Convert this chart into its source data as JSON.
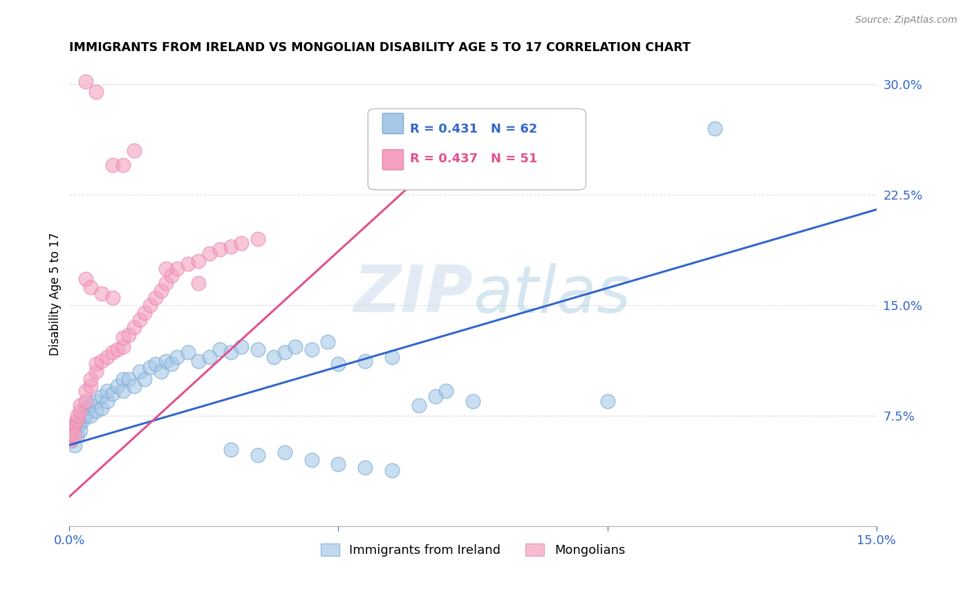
{
  "title": "IMMIGRANTS FROM IRELAND VS MONGOLIAN DISABILITY AGE 5 TO 17 CORRELATION CHART",
  "source": "Source: ZipAtlas.com",
  "ylabel": "Disability Age 5 to 17",
  "legend_labels": [
    "Immigrants from Ireland",
    "Mongolians"
  ],
  "legend_r_blue": "R = 0.431",
  "legend_n_blue": "N = 62",
  "legend_r_pink": "R = 0.437",
  "legend_n_pink": "N = 51",
  "blue_color": "#a8c8e8",
  "pink_color": "#f4a0c0",
  "blue_line_color": "#3366cc",
  "pink_line_color": "#e05090",
  "blue_edge_color": "#7aaad0",
  "pink_edge_color": "#e888b0",
  "xmin": 0.0,
  "xmax": 0.15,
  "ymin": 0.0,
  "ymax": 0.315,
  "xticks": [
    0.0,
    0.05,
    0.1,
    0.15
  ],
  "yticks_right": [
    0.075,
    0.15,
    0.225,
    0.3
  ],
  "grid_color": "#dddddd",
  "blue_x": [
    0.0002,
    0.0003,
    0.0005,
    0.0007,
    0.001,
    0.001,
    0.0015,
    0.002,
    0.002,
    0.0025,
    0.003,
    0.003,
    0.004,
    0.004,
    0.005,
    0.005,
    0.006,
    0.006,
    0.007,
    0.007,
    0.008,
    0.009,
    0.01,
    0.01,
    0.011,
    0.012,
    0.013,
    0.014,
    0.015,
    0.016,
    0.017,
    0.018,
    0.019,
    0.02,
    0.022,
    0.024,
    0.026,
    0.028,
    0.03,
    0.032,
    0.035,
    0.038,
    0.04,
    0.042,
    0.045,
    0.048,
    0.05,
    0.055,
    0.06,
    0.065,
    0.068,
    0.07,
    0.075,
    0.03,
    0.035,
    0.04,
    0.045,
    0.05,
    0.055,
    0.06,
    0.1,
    0.12
  ],
  "blue_y": [
    0.062,
    0.058,
    0.06,
    0.065,
    0.068,
    0.055,
    0.062,
    0.065,
    0.07,
    0.072,
    0.075,
    0.08,
    0.075,
    0.082,
    0.078,
    0.085,
    0.08,
    0.088,
    0.085,
    0.092,
    0.09,
    0.095,
    0.1,
    0.092,
    0.1,
    0.095,
    0.105,
    0.1,
    0.108,
    0.11,
    0.105,
    0.112,
    0.11,
    0.115,
    0.118,
    0.112,
    0.115,
    0.12,
    0.118,
    0.122,
    0.12,
    0.115,
    0.118,
    0.122,
    0.12,
    0.125,
    0.11,
    0.112,
    0.115,
    0.082,
    0.088,
    0.092,
    0.085,
    0.052,
    0.048,
    0.05,
    0.045,
    0.042,
    0.04,
    0.038,
    0.085,
    0.27
  ],
  "pink_x": [
    0.0001,
    0.0002,
    0.0003,
    0.0005,
    0.0007,
    0.001,
    0.001,
    0.0015,
    0.0015,
    0.002,
    0.002,
    0.003,
    0.003,
    0.004,
    0.004,
    0.005,
    0.005,
    0.006,
    0.007,
    0.008,
    0.009,
    0.01,
    0.01,
    0.011,
    0.012,
    0.013,
    0.014,
    0.015,
    0.016,
    0.017,
    0.018,
    0.019,
    0.02,
    0.022,
    0.024,
    0.026,
    0.028,
    0.03,
    0.032,
    0.035,
    0.003,
    0.005,
    0.008,
    0.01,
    0.012,
    0.018,
    0.024,
    0.003,
    0.004,
    0.006,
    0.008
  ],
  "pink_y": [
    0.06,
    0.058,
    0.062,
    0.065,
    0.068,
    0.07,
    0.062,
    0.072,
    0.075,
    0.078,
    0.082,
    0.085,
    0.092,
    0.095,
    0.1,
    0.105,
    0.11,
    0.112,
    0.115,
    0.118,
    0.12,
    0.122,
    0.128,
    0.13,
    0.135,
    0.14,
    0.145,
    0.15,
    0.155,
    0.16,
    0.165,
    0.17,
    0.175,
    0.178,
    0.18,
    0.185,
    0.188,
    0.19,
    0.192,
    0.195,
    0.302,
    0.295,
    0.245,
    0.245,
    0.255,
    0.175,
    0.165,
    0.168,
    0.162,
    0.158,
    0.155
  ],
  "blue_line_x": [
    0.0,
    0.15
  ],
  "blue_line_y": [
    0.055,
    0.215
  ],
  "pink_line_x": [
    0.0,
    0.078
  ],
  "pink_line_y": [
    0.02,
    0.28
  ]
}
